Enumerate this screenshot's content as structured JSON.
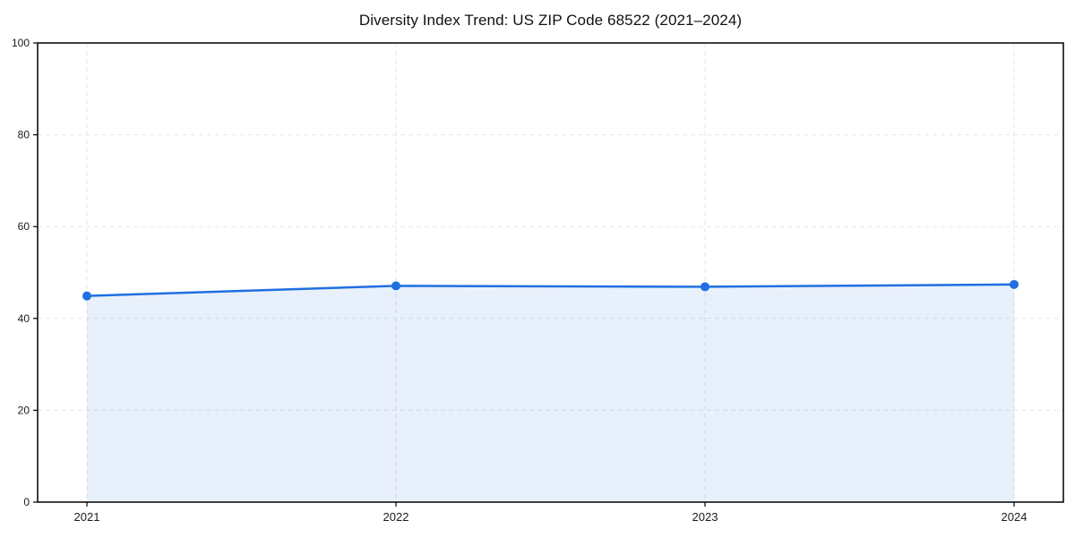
{
  "chart_data": {
    "type": "line",
    "title": "Diversity Index Trend: US ZIP Code 68522 (2021–2024)",
    "x": [
      2021,
      2022,
      2023,
      2024
    ],
    "series": [
      {
        "name": "Diversity Index",
        "values": [
          44.9,
          47.1,
          46.9,
          47.4
        ]
      }
    ],
    "xlabel": "",
    "ylabel": "",
    "ylim": [
      0,
      100
    ],
    "yticks": [
      0,
      20,
      40,
      60,
      80,
      100
    ],
    "grid": true,
    "grid_style": "dashed",
    "area_fill": true,
    "legend_position": "none",
    "marker": "circle",
    "colors": {
      "line": "#1f6fe0",
      "marker": "#1f6fe0",
      "fill": "rgba(31,111,224,0.10)",
      "grid": "#e6e6e6",
      "spine": "#000000",
      "tick_label": "#1a1a1a",
      "title": "#111111",
      "background": "#ffffff"
    }
  }
}
